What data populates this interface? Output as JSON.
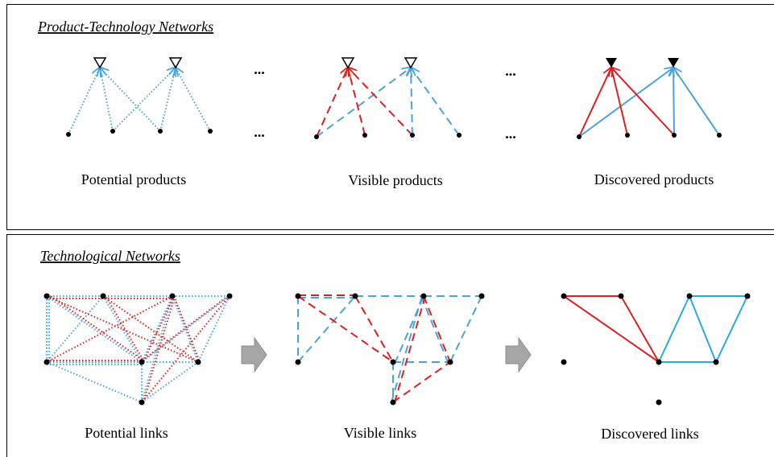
{
  "sections": [
    {
      "title": "Product-Technology Networks",
      "panels": [
        {
          "label": "Potential products"
        },
        {
          "label": "Visible products"
        },
        {
          "label": "Discovered products"
        }
      ],
      "ellipses": [
        "...",
        "...",
        "...",
        "..."
      ]
    },
    {
      "title": "Technological Networks",
      "panels": [
        {
          "label": "Potential links"
        },
        {
          "label": "Visible links"
        },
        {
          "label": "Discovered links"
        }
      ]
    }
  ]
}
